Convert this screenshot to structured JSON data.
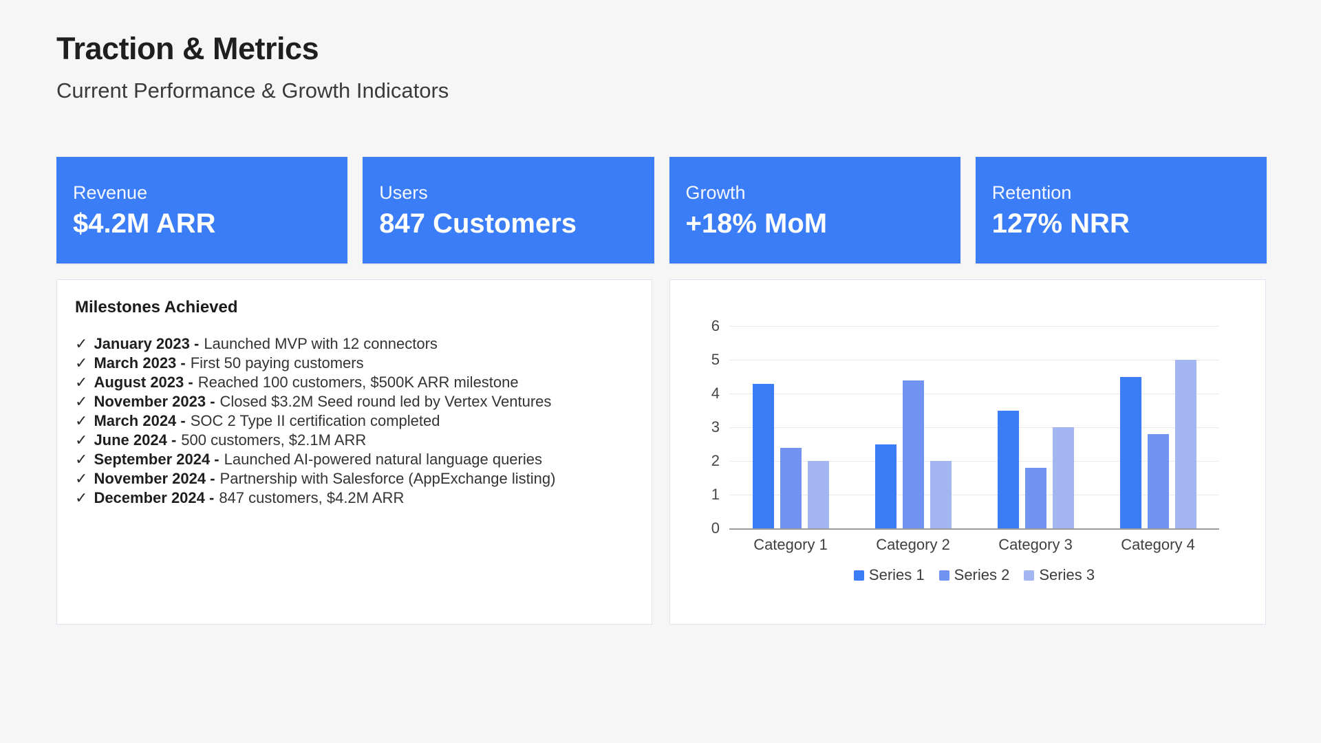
{
  "page": {
    "title": "Traction & Metrics",
    "subtitle": "Current Performance & Growth Indicators"
  },
  "metric_cards": [
    {
      "id": "revenue",
      "label": "Revenue",
      "value": "$4.2M ARR"
    },
    {
      "id": "users",
      "label": "Users",
      "value": "847 Customers"
    },
    {
      "id": "growth",
      "label": "Growth",
      "value": "+18% MoM"
    },
    {
      "id": "retention",
      "label": "Retention",
      "value": "127% NRR"
    }
  ],
  "milestones": {
    "heading": "Milestones Achieved",
    "check_icon": "✓",
    "items": [
      {
        "date": "January 2023 -",
        "text": "Launched MVP with 12 connectors"
      },
      {
        "date": "March 2023 -",
        "text": "First 50 paying customers"
      },
      {
        "date": "August 2023 -",
        "text": "Reached 100 customers, $500K ARR milestone"
      },
      {
        "date": "November 2023 -",
        "text": "Closed $3.2M Seed round led by Vertex Ventures"
      },
      {
        "date": "March 2024 -",
        "text": "SOC 2 Type II certification completed"
      },
      {
        "date": "June 2024 -",
        "text": "500 customers, $2.1M ARR"
      },
      {
        "date": "September 2024 -",
        "text": "Launched AI-powered natural language queries"
      },
      {
        "date": "November 2024 -",
        "text": "Partnership with Salesforce (AppExchange listing)"
      },
      {
        "date": "December 2024 -",
        "text": "847 customers, $4.2M ARR"
      }
    ]
  },
  "chart_data": {
    "type": "bar",
    "title": "",
    "xlabel": "",
    "ylabel": "",
    "categories": [
      "Category 1",
      "Category 2",
      "Category 3",
      "Category 4"
    ],
    "series": [
      {
        "name": "Series 1",
        "color": "#3B7CF7",
        "values": [
          4.3,
          2.5,
          3.5,
          4.5
        ]
      },
      {
        "name": "Series 2",
        "color": "#7193F1",
        "values": [
          2.4,
          4.4,
          1.8,
          2.8
        ]
      },
      {
        "name": "Series 3",
        "color": "#A3B6F2",
        "values": [
          2.0,
          2.0,
          3.0,
          5.0
        ]
      }
    ],
    "ylim": [
      0,
      6
    ],
    "yticks": [
      0,
      1,
      2,
      3,
      4,
      5,
      6
    ],
    "grid": true,
    "legend_position": "bottom"
  },
  "colors": {
    "page_background": "#F6F6F6",
    "card_background": "#3B7CF7",
    "series_1": "#3B7CF7",
    "series_2": "#7193F1",
    "series_3": "#A3B6F2"
  }
}
